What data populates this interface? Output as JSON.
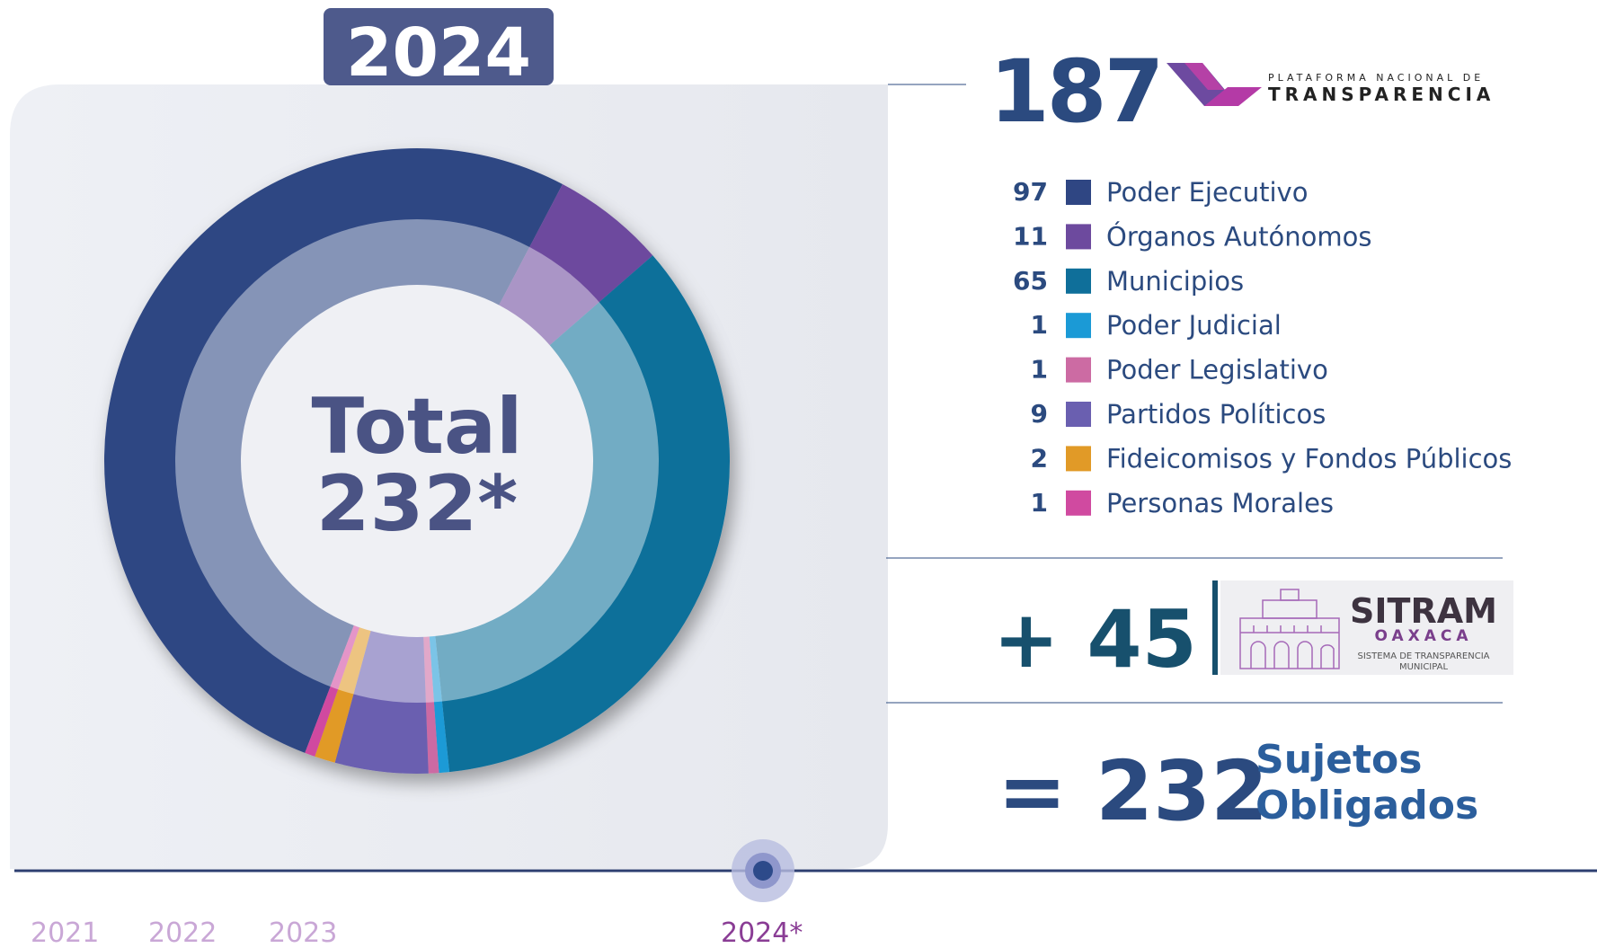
{
  "year_tab": "2024",
  "chart_data": {
    "type": "pie",
    "center_label": "Total",
    "center_value": "232*",
    "categories": [
      "Poder Ejecutivo",
      "Órganos Autónomos",
      "Municipios",
      "Poder Judicial",
      "Poder Legislativo",
      "Partidos Políticos",
      "Fideicomisos y Fondos Públicos",
      "Personas Morales"
    ],
    "values": [
      97,
      11,
      65,
      1,
      1,
      9,
      2,
      1
    ],
    "colors": [
      "#2f4683",
      "#6d4a9e",
      "#0f6f9a",
      "#1b9ad6",
      "#cc6ba3",
      "#6a5fb0",
      "#e19a27",
      "#d04aa0"
    ]
  },
  "pnt": {
    "count": "187",
    "logo_line1": "PLATAFORMA NACIONAL DE",
    "logo_line2": "TRANSPARENCIA"
  },
  "sitram": {
    "count": "+ 45",
    "logo_title": "SITRAM",
    "logo_subtitle": "OAXACA",
    "logo_line1": "SISTEMA DE TRANSPARENCIA",
    "logo_line2": "MUNICIPAL"
  },
  "result": {
    "count": "= 232",
    "label_line1": "Sujetos",
    "label_line2": "Obligados"
  },
  "timeline": {
    "years": [
      "2021",
      "2022",
      "2023",
      "2024*"
    ]
  }
}
